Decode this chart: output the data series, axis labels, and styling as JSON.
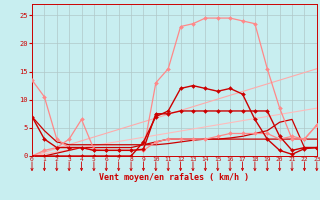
{
  "background_color": "#c8eef0",
  "grid_color": "#b0c8c8",
  "xlabel": "Vent moyen/en rafales ( km/h )",
  "xlim": [
    0,
    23
  ],
  "ylim": [
    0,
    27
  ],
  "yticks": [
    0,
    5,
    10,
    15,
    20,
    25
  ],
  "xticks": [
    0,
    1,
    2,
    3,
    4,
    5,
    6,
    7,
    8,
    9,
    10,
    11,
    12,
    13,
    14,
    15,
    16,
    17,
    18,
    19,
    20,
    21,
    22,
    23
  ],
  "lines": [
    {
      "x": [
        0,
        1,
        2,
        3,
        4,
        5,
        6,
        7,
        8,
        9,
        10,
        11,
        12,
        13,
        14,
        15,
        16,
        17,
        18,
        19,
        20,
        21,
        22,
        23
      ],
      "y": [
        13.5,
        10.5,
        3,
        1.5,
        1.5,
        1,
        1,
        1,
        1,
        1,
        2.5,
        3,
        3,
        3,
        3,
        3.5,
        4,
        4,
        4,
        4,
        3,
        3.5,
        3,
        5.5
      ],
      "color": "#ff8888",
      "lw": 0.9,
      "marker": "D",
      "ms": 2.0
    },
    {
      "x": [
        0,
        1,
        2,
        3,
        4,
        5,
        6,
        7,
        8,
        9,
        10,
        11,
        12,
        13,
        14,
        15,
        16,
        17,
        18,
        19,
        20,
        21,
        22,
        23
      ],
      "y": [
        0,
        1,
        1.5,
        3,
        6.5,
        1.2,
        1,
        1,
        1,
        1,
        13,
        15.5,
        23,
        23.5,
        24.5,
        24.5,
        24.5,
        24,
        23.5,
        15.5,
        8.5,
        3,
        3,
        5.5
      ],
      "color": "#ff8888",
      "lw": 0.9,
      "marker": "D",
      "ms": 2.0
    },
    {
      "x": [
        0,
        23
      ],
      "y": [
        0,
        15.5
      ],
      "color": "#ffaaaa",
      "lw": 0.8,
      "marker": null,
      "ms": 0
    },
    {
      "x": [
        0,
        23
      ],
      "y": [
        0,
        8.5
      ],
      "color": "#ffbbbb",
      "lw": 0.8,
      "marker": null,
      "ms": 0
    },
    {
      "x": [
        0,
        1,
        2,
        3,
        4,
        5,
        6,
        7,
        8,
        9,
        10,
        11,
        12,
        13,
        14,
        15,
        16,
        17,
        18,
        19,
        20,
        21,
        22,
        23
      ],
      "y": [
        7,
        3,
        1.5,
        1.5,
        1.5,
        1,
        1,
        1,
        1,
        1.2,
        7.5,
        7.5,
        8,
        8,
        8,
        8,
        8,
        8,
        8,
        8,
        3.5,
        1,
        1.5,
        1.5
      ],
      "color": "#cc0000",
      "lw": 1.0,
      "marker": "D",
      "ms": 2.0
    },
    {
      "x": [
        0,
        1,
        2,
        3,
        4,
        5,
        6,
        7,
        8,
        9,
        10,
        11,
        12,
        13,
        14,
        15,
        16,
        17,
        18,
        19,
        20,
        21,
        22,
        23
      ],
      "y": [
        0,
        0,
        0,
        0,
        0,
        0,
        0,
        0,
        0,
        2.5,
        7,
        8,
        12,
        12.5,
        12,
        11.5,
        12,
        11,
        6.5,
        3,
        1,
        0.3,
        1.3,
        1.5
      ],
      "color": "#cc0000",
      "lw": 1.0,
      "marker": "D",
      "ms": 2.0
    },
    {
      "x": [
        0,
        1,
        2,
        3,
        4,
        5,
        6,
        7,
        8,
        9,
        10,
        11,
        12,
        13,
        14,
        15,
        16,
        17,
        18,
        19,
        20,
        21,
        22,
        23
      ],
      "y": [
        7,
        4.5,
        2.5,
        2,
        2,
        2,
        2,
        2,
        2,
        2,
        2.5,
        3,
        3,
        3,
        3,
        3,
        3,
        3,
        3,
        3,
        3,
        3,
        3,
        3
      ],
      "color": "#cc0000",
      "lw": 0.9,
      "marker": null,
      "ms": 0
    },
    {
      "x": [
        0,
        1,
        2,
        3,
        4,
        5,
        6,
        7,
        8,
        9,
        10,
        11,
        12,
        13,
        14,
        15,
        16,
        17,
        18,
        19,
        20,
        21,
        22,
        23
      ],
      "y": [
        0,
        0,
        0.5,
        1,
        1.5,
        1.5,
        1.5,
        1.5,
        1.5,
        2,
        2,
        2.2,
        2.5,
        2.8,
        3,
        3,
        3.2,
        3.5,
        4,
        4.5,
        6,
        6.5,
        1.5,
        1.5
      ],
      "color": "#cc0000",
      "lw": 0.9,
      "marker": null,
      "ms": 0
    }
  ],
  "arrow_color": "#cc0000",
  "tick_label_color": "#cc0000",
  "spine_color": "#cc0000"
}
